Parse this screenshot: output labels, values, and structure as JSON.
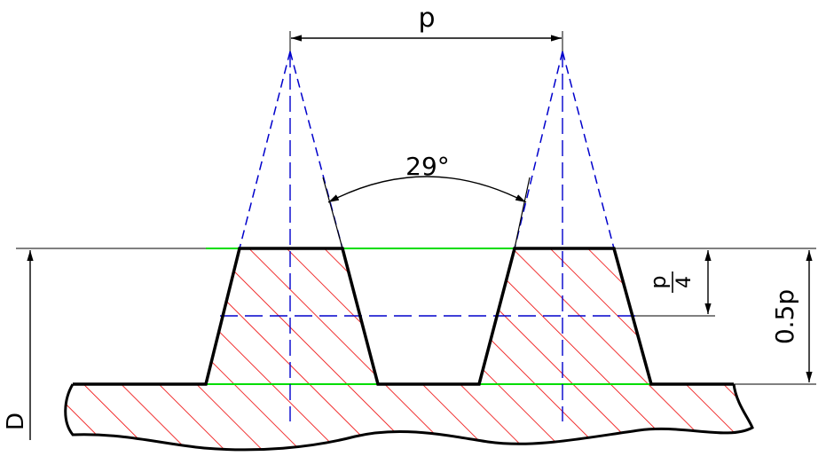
{
  "labels": {
    "pitch": "p",
    "angle": "29°",
    "depth_quarter_num": "p",
    "depth_quarter_den": "4",
    "depth_half": "0.5p",
    "diameter": "D"
  },
  "colors": {
    "outline": "#000000",
    "construction": "#0000cc",
    "reference": "#00dd00",
    "hatch": "#ee0000",
    "background": "#ffffff"
  }
}
